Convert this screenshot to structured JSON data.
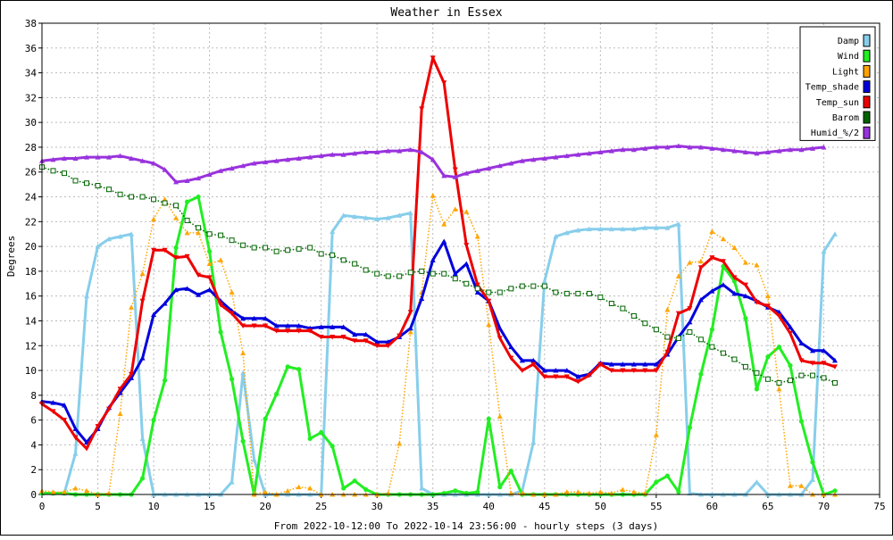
{
  "chart_data": {
    "type": "line",
    "title": "Weather in Essex",
    "xlabel": "From 2022-10-12:00 To 2022-10-14 23:56:00 - hourly steps (3 days)",
    "ylabel": "Degrees",
    "xlim": [
      0,
      75
    ],
    "ylim": [
      0,
      38
    ],
    "x_ticks": [
      0,
      5,
      10,
      15,
      20,
      25,
      30,
      35,
      40,
      45,
      50,
      55,
      60,
      65,
      70,
      75
    ],
    "y_ticks": [
      0,
      2,
      4,
      6,
      8,
      10,
      12,
      14,
      16,
      18,
      20,
      22,
      24,
      26,
      28,
      30,
      32,
      34,
      36,
      38
    ],
    "grid": true,
    "legend_position": "top-right",
    "series": [
      {
        "name": "Damp",
        "color": "#87ceeb",
        "marker": "triangle-up",
        "line_style": "solid",
        "values": [
          0.1,
          0.1,
          0.1,
          3.3,
          16,
          20,
          20.6,
          20.8,
          21,
          4.5,
          0,
          0,
          0,
          0,
          0,
          0,
          0,
          1,
          9.8,
          2.8,
          0,
          0,
          0,
          0,
          0,
          0,
          21.2,
          22.5,
          22.4,
          22.3,
          22.2,
          22.3,
          22.5,
          22.7,
          0.5,
          0,
          0,
          0,
          0,
          0,
          0,
          0,
          0,
          0.3,
          4.2,
          17.2,
          20.8,
          21.1,
          21.3,
          21.4,
          21.4,
          21.4,
          21.4,
          21.4,
          21.5,
          21.5,
          21.5,
          21.8,
          0.1,
          0,
          0,
          0,
          0,
          0,
          1,
          0,
          0,
          0,
          0,
          1.2,
          19.6,
          21
        ]
      },
      {
        "name": "Wind",
        "color": "#22ee22",
        "marker": "circle",
        "line_style": "solid",
        "values": [
          0.1,
          0.1,
          0.1,
          0,
          0,
          0,
          0,
          0,
          0,
          1.3,
          6,
          9.2,
          19.9,
          23.6,
          24,
          19.6,
          13.1,
          9.3,
          4.3,
          0,
          6.1,
          8.1,
          10.3,
          10.1,
          4.5,
          5,
          3.9,
          0.5,
          1.1,
          0.4,
          0,
          0,
          0,
          0,
          0,
          0,
          0.1,
          0.3,
          0.1,
          0.2,
          6.1,
          0.6,
          1.9,
          0,
          0,
          0,
          0,
          0,
          0,
          0,
          0,
          0,
          0,
          0,
          0,
          1,
          1.5,
          0.2,
          5.4,
          9.7,
          13.3,
          18.4,
          17.2,
          14.2,
          8.5,
          11.1,
          11.9,
          10.4,
          5.9,
          2.6,
          0,
          0.3
        ]
      },
      {
        "name": "Light",
        "color": "#ffa500",
        "marker": "triangle-up",
        "line_style": "dotted",
        "values": [
          0.3,
          0.2,
          0.2,
          0.5,
          0.3,
          0,
          0.1,
          6.5,
          15.1,
          17.8,
          22.2,
          23.8,
          22.3,
          21.1,
          21.1,
          18.6,
          18.9,
          16.3,
          11.4,
          0,
          0.2,
          0,
          0.3,
          0.6,
          0.5,
          0,
          0,
          0,
          0,
          0,
          0,
          0.1,
          4.1,
          13.1,
          16.3,
          24.1,
          21.8,
          23,
          22.8,
          20.8,
          13.7,
          6.3,
          0.1,
          0.1,
          0,
          0,
          0,
          0.2,
          0.2,
          0.1,
          0.2,
          0.1,
          0.4,
          0.2,
          0.1,
          4.8,
          14.9,
          17.6,
          18.7,
          18.8,
          21.2,
          20.6,
          19.9,
          18.7,
          18.5,
          16,
          8.5,
          0.7,
          0.7,
          0,
          0,
          0
        ]
      },
      {
        "name": "Temp_shade",
        "color": "#0000dd",
        "marker": "triangle-up",
        "line_style": "solid",
        "values": [
          7.5,
          7.4,
          7.2,
          5.3,
          4.2,
          5.3,
          7,
          8.2,
          9.4,
          11,
          14.5,
          15.4,
          16.5,
          16.6,
          16.1,
          16.5,
          15.6,
          14.8,
          14.2,
          14.2,
          14.2,
          13.6,
          13.6,
          13.6,
          13.4,
          13.5,
          13.5,
          13.5,
          12.9,
          12.9,
          12.3,
          12.3,
          12.7,
          13.4,
          15.8,
          18.9,
          20.4,
          17.8,
          18.6,
          16.3,
          15.6,
          13.4,
          11.9,
          10.8,
          10.8,
          10,
          10,
          10,
          9.5,
          9.7,
          10.6,
          10.5,
          10.5,
          10.5,
          10.5,
          10.5,
          11.3,
          12.7,
          13.9,
          15.7,
          16.4,
          16.9,
          16.2,
          16,
          15.6,
          15.1,
          14.7,
          13.5,
          12.2,
          11.6,
          11.6,
          10.8
        ]
      },
      {
        "name": "Temp_sun",
        "color": "#ee0000",
        "marker": "triangle-down",
        "line_style": "solid",
        "values": [
          7.3,
          6.7,
          6,
          4.6,
          3.7,
          5.5,
          6.9,
          8.5,
          9.7,
          15.6,
          19.7,
          19.7,
          19.1,
          19.2,
          17.7,
          17.5,
          15.3,
          14.6,
          13.6,
          13.6,
          13.6,
          13.2,
          13.2,
          13.2,
          13.2,
          12.7,
          12.7,
          12.7,
          12.4,
          12.4,
          12,
          12,
          12.8,
          14.7,
          31.1,
          35.2,
          33.2,
          26.2,
          20.1,
          16.9,
          15.6,
          12.6,
          11,
          10,
          10.5,
          9.5,
          9.5,
          9.5,
          9.1,
          9.6,
          10.5,
          10,
          10,
          10,
          10,
          10,
          11.5,
          14.6,
          15,
          18.3,
          19.1,
          18.8,
          17.5,
          16.9,
          15.5,
          15.2,
          14.4,
          13,
          10.8,
          10.6,
          10.6,
          10.3
        ]
      },
      {
        "name": "Barom",
        "color": "#006400",
        "marker": "square-open",
        "line_style": "dotted",
        "values": [
          26.4,
          26.1,
          25.9,
          25.3,
          25.1,
          24.9,
          24.6,
          24.2,
          24,
          24,
          23.8,
          23.5,
          23.3,
          22.1,
          21.5,
          21,
          20.9,
          20.5,
          20.1,
          19.9,
          19.9,
          19.6,
          19.7,
          19.8,
          19.9,
          19.4,
          19.3,
          18.9,
          18.6,
          18.1,
          17.8,
          17.6,
          17.6,
          17.9,
          18,
          17.8,
          17.8,
          17.4,
          17,
          16.6,
          16.3,
          16.3,
          16.6,
          16.8,
          16.8,
          16.8,
          16.3,
          16.2,
          16.2,
          16.2,
          15.9,
          15.4,
          15,
          14.4,
          13.8,
          13.3,
          12.7,
          12.6,
          13.1,
          12.5,
          11.9,
          11.4,
          10.9,
          10.3,
          9.8,
          9.3,
          9,
          9.2,
          9.6,
          9.6,
          9.4,
          9
        ]
      },
      {
        "name": "Humid_%/2",
        "color": "#9933dd",
        "marker": "triangle-up",
        "line_style": "solid",
        "values": [
          26.9,
          27,
          27.1,
          27.1,
          27.2,
          27.2,
          27.2,
          27.3,
          27.1,
          26.9,
          26.7,
          26.2,
          25.2,
          25.3,
          25.5,
          25.8,
          26.1,
          26.3,
          26.5,
          26.7,
          26.8,
          26.9,
          27,
          27.1,
          27.2,
          27.3,
          27.4,
          27.4,
          27.5,
          27.6,
          27.6,
          27.7,
          27.7,
          27.8,
          27.6,
          27,
          25.7,
          25.6,
          25.9,
          26.1,
          26.3,
          26.5,
          26.7,
          26.9,
          27,
          27.1,
          27.2,
          27.3,
          27.4,
          27.5,
          27.6,
          27.7,
          27.8,
          27.8,
          27.9,
          28,
          28,
          28.1,
          28,
          28,
          27.9,
          27.8,
          27.7,
          27.6,
          27.5,
          27.6,
          27.7,
          27.8,
          27.8,
          27.9,
          28
        ]
      }
    ]
  }
}
